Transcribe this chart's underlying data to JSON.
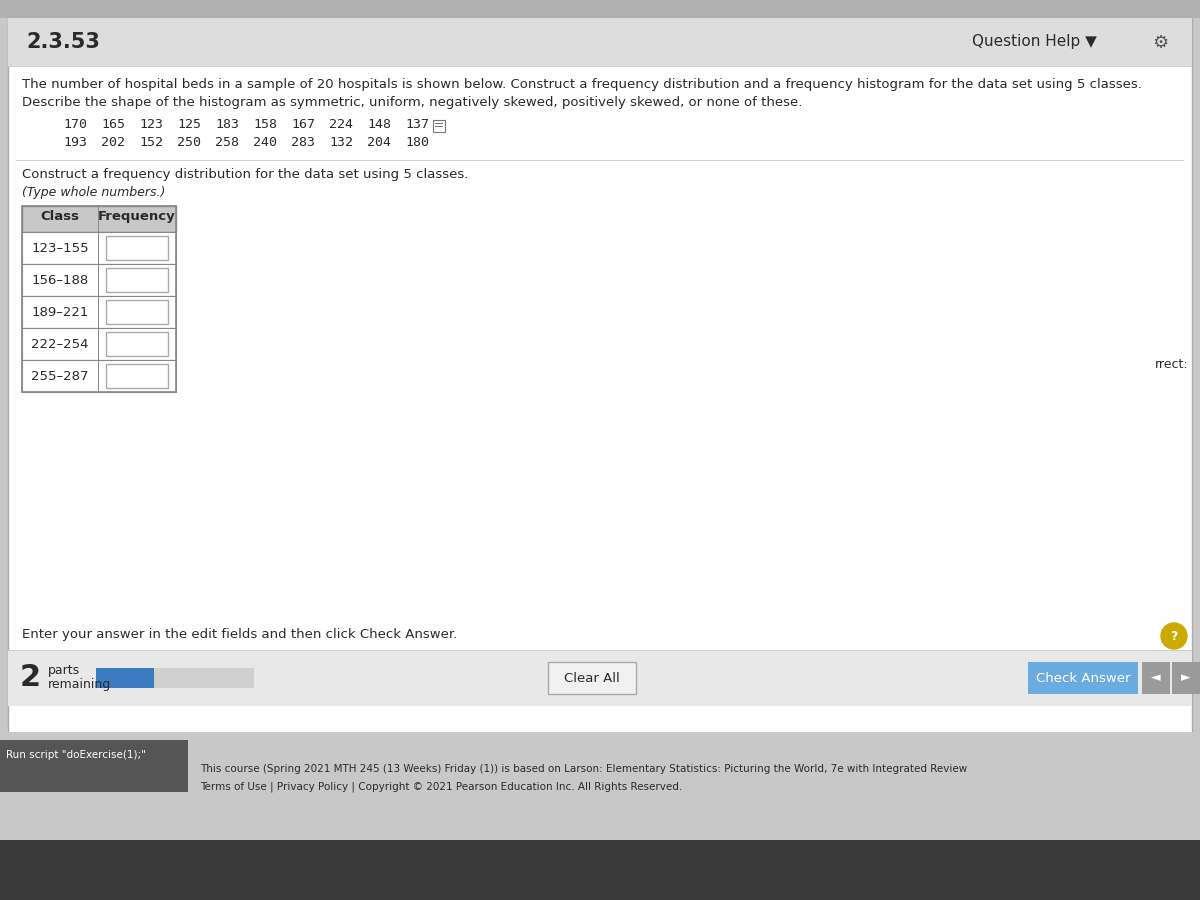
{
  "title": "2.3.53",
  "question_help": "Question Help ▼",
  "problem_text_line1": "The number of hospital beds in a sample of 20 hospitals is shown below. Construct a frequency distribution and a frequency histogram for the data set using 5 classes.",
  "problem_text_line2": "Describe the shape of the histogram as symmetric, uniform, negatively skewed, positively skewed, or none of these.",
  "data_row1_vals": [
    "170",
    "165",
    "123",
    "125",
    "183",
    "158",
    "167",
    "224",
    "148",
    "137"
  ],
  "data_row2_vals": [
    "193",
    "202",
    "152",
    "250",
    "258",
    "240",
    "283",
    "132",
    "204",
    "180"
  ],
  "instruction_line1": "Construct a frequency distribution for the data set using 5 classes.",
  "instruction_line2": "(Type whole numbers.)",
  "col_class": "Class",
  "col_freq": "Frequency",
  "classes": [
    "123–155",
    "156–188",
    "189–221",
    "222–254",
    "255–287"
  ],
  "enter_answer_text": "Enter your answer in the edit fields and then click Check Answer.",
  "parts_remaining_num": "2",
  "parts_label": "parts",
  "remaining_label": "remaining",
  "clear_all_label": "Clear All",
  "check_answer_label": "Check Answer",
  "footer_line1": "This course (Spring 2021 MTH 245 (13 Weeks) Friday (1)) is based on Larson: Elementary Statistics: Picturing the World, 7e with Integrated Review",
  "footer_line2": "Terms of Use | Privacy Policy | Copyright © 2021 Pearson Education Inc. All Rights Reserved.",
  "run_script_label": "Run script \"doExercise(1);\"",
  "rrect_label": "rrect:",
  "bg_outer": "#c8c8c8",
  "bg_main": "#f5f5f5",
  "white": "#ffffff",
  "dark_gray": "#2a2a2a",
  "medium_gray": "#777777",
  "light_gray": "#d0d0d0",
  "border_color": "#aaaaaa",
  "header_bg": "#c8c8c8",
  "check_button_bg": "#6aabe0",
  "progress_blue": "#3a7bbf",
  "bottom_bar_bg": "#e8e8e8",
  "clear_btn_bg": "#f0f0f0",
  "gear_color": "#555555",
  "question_mark_color": "#ccaa00",
  "arrow_nav_bg": "#9a9a9a",
  "table_border": "#888888",
  "top_strip_bg": "#dddddd",
  "footer_bg": "#aaaaaa",
  "run_script_bg": "#555555"
}
